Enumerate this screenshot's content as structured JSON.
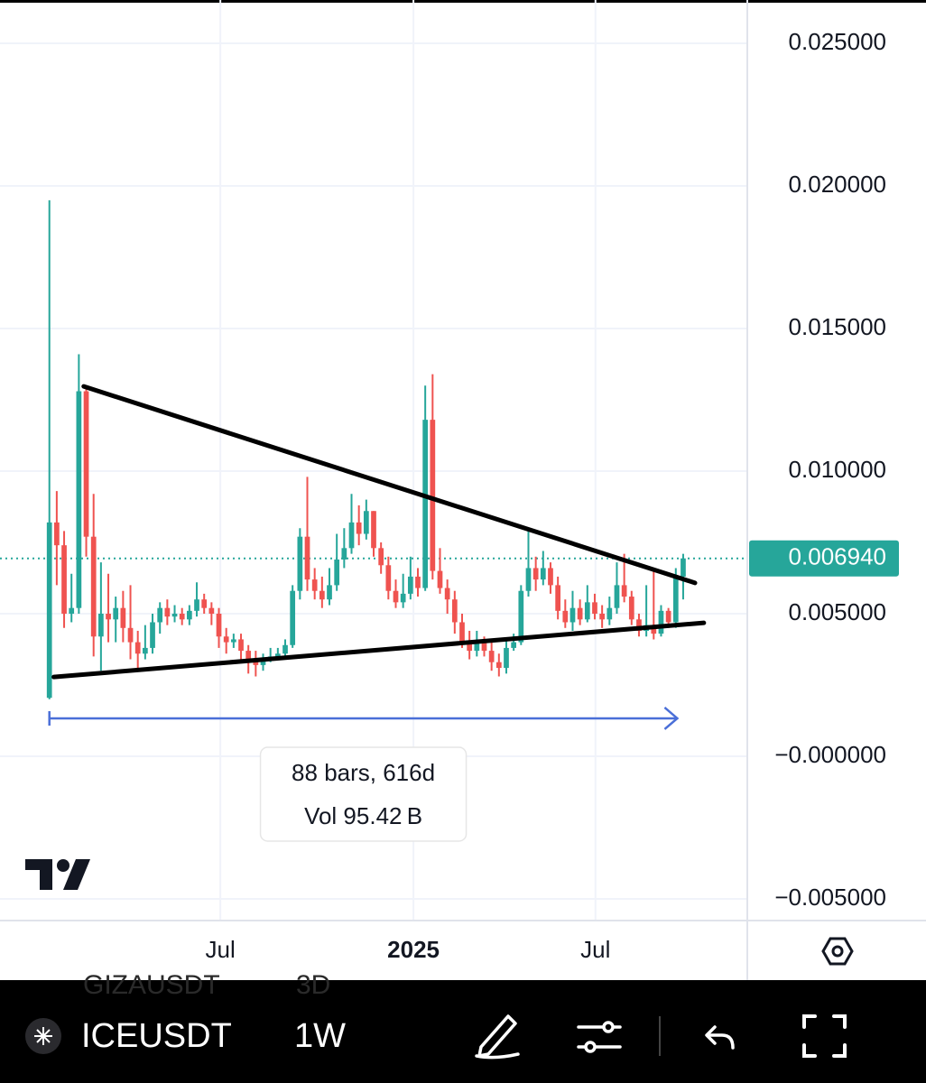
{
  "chart_data": {
    "type": "candlestick",
    "up_color": "#26a69a",
    "down_color": "#ef5350",
    "open": [
      0.00205,
      0.0082,
      0.0074,
      0.005,
      0.0052,
      0.0128,
      0.0077,
      0.0042,
      0.005,
      0.0048,
      0.0052,
      0.0045,
      0.004,
      0.0036,
      0.0038,
      0.0047,
      0.0052,
      0.0049,
      0.005,
      0.0048,
      0.0051,
      0.0055,
      0.0052,
      0.005,
      0.0042,
      0.004,
      0.0041,
      0.0037,
      0.0034,
      0.0032,
      0.0034,
      0.0035,
      0.0036,
      0.0039,
      0.0058,
      0.0077,
      0.0062,
      0.0058,
      0.0055,
      0.006,
      0.0069,
      0.0073,
      0.0082,
      0.0078,
      0.0086,
      0.0073,
      0.0067,
      0.0058,
      0.0054,
      0.0057,
      0.0063,
      0.0059,
      0.0118,
      0.0065,
      0.0059,
      0.0055,
      0.0047,
      0.004,
      0.0037,
      0.004,
      0.0037,
      0.0033,
      0.0031,
      0.0038,
      0.004,
      0.0058,
      0.0066,
      0.0062,
      0.0066,
      0.006,
      0.0051,
      0.0047,
      0.0052,
      0.0048,
      0.0054,
      0.005,
      0.0048,
      0.0052,
      0.006,
      0.0056,
      0.0048,
      0.0044,
      0.0046,
      0.0043,
      0.0051,
      0.0047,
      0.0063
    ],
    "high": [
      0.0195,
      0.0093,
      0.0079,
      0.0064,
      0.0141,
      0.013,
      0.0092,
      0.0068,
      0.0064,
      0.0056,
      0.0058,
      0.006,
      0.0044,
      0.0046,
      0.005,
      0.0054,
      0.0055,
      0.0053,
      0.0052,
      0.0053,
      0.0061,
      0.0057,
      0.0054,
      0.0052,
      0.0045,
      0.0043,
      0.0043,
      0.0039,
      0.0037,
      0.0036,
      0.0038,
      0.0038,
      0.0041,
      0.006,
      0.008,
      0.0098,
      0.0066,
      0.0063,
      0.0066,
      0.0078,
      0.008,
      0.0092,
      0.0088,
      0.009,
      0.0086,
      0.0075,
      0.007,
      0.0062,
      0.0064,
      0.007,
      0.0066,
      0.013,
      0.0134,
      0.0073,
      0.0062,
      0.0058,
      0.005,
      0.0044,
      0.0044,
      0.0042,
      0.004,
      0.0036,
      0.0041,
      0.0043,
      0.006,
      0.008,
      0.007,
      0.0072,
      0.0068,
      0.0063,
      0.0055,
      0.0058,
      0.0055,
      0.006,
      0.0057,
      0.0053,
      0.0056,
      0.0068,
      0.0071,
      0.0058,
      0.005,
      0.006,
      0.0066,
      0.0053,
      0.0052,
      0.0066,
      0.0071
    ],
    "low": [
      0.002,
      0.006,
      0.0045,
      0.0047,
      0.005,
      0.007,
      0.0035,
      0.003,
      0.004,
      0.004,
      0.004,
      0.0034,
      0.003,
      0.0034,
      0.0036,
      0.0043,
      0.0046,
      0.0047,
      0.0046,
      0.0046,
      0.0049,
      0.005,
      0.0046,
      0.0038,
      0.0036,
      0.0038,
      0.0034,
      0.0029,
      0.0028,
      0.003,
      0.0033,
      0.0034,
      0.0035,
      0.0038,
      0.0055,
      0.0058,
      0.0055,
      0.0052,
      0.0053,
      0.0058,
      0.0066,
      0.0071,
      0.0074,
      0.0076,
      0.007,
      0.0064,
      0.0055,
      0.0052,
      0.0052,
      0.0055,
      0.0056,
      0.0058,
      0.0062,
      0.0057,
      0.005,
      0.0043,
      0.0038,
      0.0034,
      0.0035,
      0.0035,
      0.003,
      0.0028,
      0.0029,
      0.0037,
      0.0039,
      0.0056,
      0.0058,
      0.006,
      0.0057,
      0.0048,
      0.0045,
      0.0044,
      0.0046,
      0.0047,
      0.0048,
      0.0045,
      0.0046,
      0.005,
      0.0054,
      0.0046,
      0.0042,
      0.0042,
      0.0041,
      0.0042,
      0.0045,
      0.0045,
      0.0055
    ],
    "close": [
      0.0082,
      0.0074,
      0.005,
      0.0052,
      0.0128,
      0.0077,
      0.0042,
      0.005,
      0.0048,
      0.0052,
      0.0045,
      0.004,
      0.0036,
      0.0038,
      0.0047,
      0.0052,
      0.0049,
      0.005,
      0.0048,
      0.0051,
      0.0055,
      0.0052,
      0.005,
      0.0042,
      0.004,
      0.0041,
      0.0037,
      0.0034,
      0.0032,
      0.0034,
      0.0035,
      0.0036,
      0.0039,
      0.0058,
      0.0077,
      0.0062,
      0.0058,
      0.0055,
      0.006,
      0.0069,
      0.0073,
      0.0082,
      0.0078,
      0.0086,
      0.0073,
      0.0067,
      0.0058,
      0.0054,
      0.0057,
      0.0063,
      0.0059,
      0.0118,
      0.0065,
      0.0059,
      0.0055,
      0.0047,
      0.004,
      0.0037,
      0.004,
      0.0037,
      0.0033,
      0.0031,
      0.0038,
      0.004,
      0.0058,
      0.0066,
      0.0062,
      0.0066,
      0.006,
      0.0051,
      0.0047,
      0.0052,
      0.0048,
      0.0054,
      0.005,
      0.0048,
      0.0052,
      0.006,
      0.0056,
      0.0048,
      0.0044,
      0.0046,
      0.0043,
      0.0051,
      0.0047,
      0.0063,
      0.00694
    ],
    "xlim": [
      -6.7,
      94.7
    ],
    "xticks": [
      {
        "value": 23.2,
        "label": "Jul"
      },
      {
        "value": 49.4,
        "label": "2025"
      },
      {
        "value": 74.1,
        "label": "Jul"
      }
    ],
    "ylim": [
      -0.00576,
      0.02652
    ],
    "yticks": [
      {
        "value": -0.005,
        "label": "−0.005000"
      },
      {
        "value": 0,
        "label": "−0.000000"
      },
      {
        "value": 0.005,
        "label": "0.005000"
      },
      {
        "value": 0.01,
        "label": "0.010000"
      },
      {
        "value": 0.015,
        "label": "0.015000"
      },
      {
        "value": 0.02,
        "label": "0.020000"
      },
      {
        "value": 0.025,
        "label": "0.025000"
      }
    ],
    "grid": true,
    "last_price": 0.00694,
    "last_price_label": "0.006940",
    "last_price_color": "#26a69a",
    "trendlines": [
      {
        "x": [
          4.66,
          87.6
        ],
        "y": [
          0.01297,
          0.00608
        ]
      },
      {
        "x": [
          0.6,
          88.8
        ],
        "y": [
          0.00278,
          0.00468
        ]
      }
    ],
    "measure": {
      "x": [
        0,
        85.2
      ],
      "y": 0.00133,
      "color": "#4a6fd8",
      "line1": "88 bars, 616d",
      "line2": "Vol 95.42 B"
    }
  },
  "toolbar": {
    "symbol": "ICEUSDT",
    "interval": "1W",
    "ghost_symbol": "GIZAUSDT",
    "ghost_interval": "3D"
  }
}
